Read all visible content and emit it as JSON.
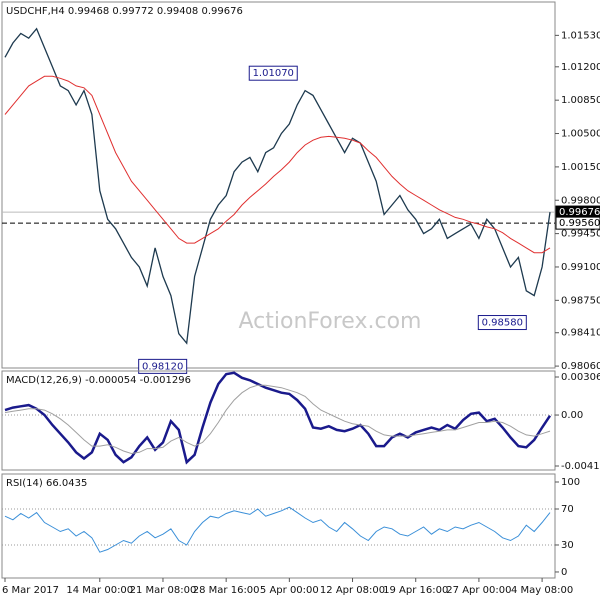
{
  "chart_data": [
    {
      "type": "line",
      "title": "USDCHF,H4  0.99468 0.99772 0.99408 0.99676",
      "watermark": "ActionForex.com",
      "ylim": [
        0.9804,
        1.0188
      ],
      "yticks": [
        {
          "value": 1.0153,
          "label": "1.01530"
        },
        {
          "value": 1.012,
          "label": "1.01200"
        },
        {
          "value": 1.0085,
          "label": "1.00850"
        },
        {
          "value": 1.005,
          "label": "1.00500"
        },
        {
          "value": 1.0015,
          "label": "1.00150"
        },
        {
          "value": 0.998,
          "label": "0.99800"
        },
        {
          "value": 0.9945,
          "label": "0.99450"
        },
        {
          "value": 0.991,
          "label": "0.99100"
        },
        {
          "value": 0.9875,
          "label": "0.98750"
        },
        {
          "value": 0.9841,
          "label": "0.98410"
        },
        {
          "value": 0.9806,
          "label": "0.98060"
        }
      ],
      "levels": [
        {
          "value": 0.99676,
          "label": "0.99676",
          "color": "#000000"
        },
        {
          "value": 0.9956,
          "label": "0.99560",
          "color": "#ffffff"
        }
      ],
      "annotations": [
        {
          "index": 37,
          "value": 1.0107,
          "label": "1.01070"
        },
        {
          "index": 23,
          "value": 0.9812,
          "label": "0.98120"
        },
        {
          "index": 66,
          "value": 0.9858,
          "label": "0.98580"
        }
      ],
      "series": [
        {
          "color": "#1e3a4f",
          "values": [
            1.013,
            1.0145,
            1.0155,
            1.015,
            1.016,
            1.014,
            1.012,
            1.01,
            1.0095,
            1.008,
            1.0095,
            1.007,
            0.999,
            0.996,
            0.995,
            0.9935,
            0.992,
            0.991,
            0.989,
            0.993,
            0.99,
            0.988,
            0.984,
            0.983,
            0.99,
            0.993,
            0.996,
            0.9975,
            0.9985,
            1.001,
            1.002,
            1.0025,
            1.001,
            1.003,
            1.0035,
            1.005,
            1.006,
            1.008,
            1.0095,
            1.009,
            1.0075,
            1.006,
            1.0045,
            1.003,
            1.0045,
            1.004,
            1.002,
            1.0,
            0.9965,
            0.9975,
            0.9985,
            0.997,
            0.996,
            0.9945,
            0.995,
            0.996,
            0.994,
            0.9945,
            0.995,
            0.9955,
            0.994,
            0.996,
            0.995,
            0.993,
            0.991,
            0.992,
            0.9885,
            0.988,
            0.991,
            0.99676
          ]
        },
        {
          "color": "#e03030",
          "values": [
            1.007,
            1.008,
            1.009,
            1.01,
            1.0105,
            1.011,
            1.011,
            1.0108,
            1.0105,
            1.01,
            1.0098,
            1.009,
            1.007,
            1.005,
            1.003,
            1.0015,
            1.0,
            0.999,
            0.998,
            0.997,
            0.996,
            0.995,
            0.994,
            0.9935,
            0.9935,
            0.994,
            0.9945,
            0.995,
            0.9958,
            0.9965,
            0.9975,
            0.9983,
            0.999,
            0.9997,
            1.0005,
            1.0012,
            1.002,
            1.003,
            1.0038,
            1.0043,
            1.0046,
            1.0047,
            1.0046,
            1.0045,
            1.0043,
            1.004,
            1.0032,
            1.0025,
            1.0015,
            1.0005,
            0.9997,
            0.999,
            0.9985,
            0.998,
            0.9975,
            0.997,
            0.9966,
            0.9962,
            0.996,
            0.9957,
            0.9955,
            0.9952,
            0.995,
            0.9946,
            0.994,
            0.9935,
            0.993,
            0.9925,
            0.9925,
            0.993
          ]
        }
      ]
    },
    {
      "type": "line",
      "title": "MACD(12,26,9) -0.000054 -0.001296",
      "ylim": [
        -0.004426,
        0.003546
      ],
      "yticks": [
        0.003063,
        {
          "value": 0,
          "label": "0.00"
        },
        -0.004104
      ],
      "series": [
        {
          "color": "#1a1a8c",
          "width": 2.5,
          "values": [
            0.0004,
            0.0006,
            0.0007,
            0.0008,
            0.0005,
            0.0,
            -0.0008,
            -0.0015,
            -0.0022,
            -0.003,
            -0.0035,
            -0.003,
            -0.0015,
            -0.002,
            -0.0032,
            -0.0038,
            -0.0034,
            -0.0025,
            -0.0018,
            -0.0028,
            -0.0022,
            -0.0005,
            -0.0012,
            -0.0038,
            -0.0032,
            -0.001,
            0.001,
            0.0025,
            0.0033,
            0.0034,
            0.003,
            0.0028,
            0.0025,
            0.0022,
            0.002,
            0.0018,
            0.0017,
            0.0012,
            0.0005,
            -0.001,
            -0.0011,
            -0.0009,
            -0.0012,
            -0.0013,
            -0.0011,
            -0.0008,
            -0.0015,
            -0.0025,
            -0.0025,
            -0.0018,
            -0.0015,
            -0.0018,
            -0.0014,
            -0.0012,
            -0.001,
            -0.0012,
            -0.0008,
            -0.0011,
            -0.0004,
            0.0001,
            0.0002,
            -0.0005,
            -0.0003,
            -0.001,
            -0.0018,
            -0.0025,
            -0.0026,
            -0.002,
            -0.001,
            -5.4e-05
          ]
        },
        {
          "color": "#a0a0a0",
          "width": 1,
          "values": [
            0.0002,
            0.0003,
            0.0004,
            0.0005,
            0.0005,
            0.0004,
            0.0001,
            -0.0003,
            -0.0008,
            -0.0014,
            -0.002,
            -0.0025,
            -0.0025,
            -0.0024,
            -0.0026,
            -0.0029,
            -0.0031,
            -0.003,
            -0.0027,
            -0.0027,
            -0.0026,
            -0.0021,
            -0.0018,
            -0.0022,
            -0.0025,
            -0.0022,
            -0.0015,
            -0.0006,
            0.0004,
            0.0012,
            0.0018,
            0.0022,
            0.0024,
            0.0024,
            0.0023,
            0.0022,
            0.002,
            0.0018,
            0.0015,
            0.0009,
            0.0004,
            0.0001,
            -0.0002,
            -0.0005,
            -0.0007,
            -0.0008,
            -0.0009,
            -0.0013,
            -0.0016,
            -0.0017,
            -0.0017,
            -0.0017,
            -0.0016,
            -0.0015,
            -0.0014,
            -0.0013,
            -0.0012,
            -0.0012,
            -0.001,
            -0.0008,
            -0.0006,
            -0.0006,
            -0.0005,
            -0.0006,
            -0.0009,
            -0.0013,
            -0.0016,
            -0.0017,
            -0.0015,
            -0.001296
          ]
        }
      ]
    },
    {
      "type": "line",
      "title": "RSI(14) 66.0435",
      "ylim": [
        -6.7,
        108.9
      ],
      "yticks": [
        100,
        70,
        30,
        0
      ],
      "categories": [
        "6 Mar 2017",
        null,
        null,
        null,
        null,
        null,
        null,
        null,
        null,
        null,
        null,
        null,
        "14 Mar 00:00",
        null,
        null,
        null,
        null,
        null,
        null,
        null,
        "21 Mar 08:00",
        null,
        null,
        null,
        null,
        null,
        null,
        null,
        "28 Mar 16:00",
        null,
        null,
        null,
        null,
        null,
        null,
        null,
        "5 Apr 00:00",
        null,
        null,
        null,
        null,
        null,
        null,
        null,
        "12 Apr 08:00",
        null,
        null,
        null,
        null,
        null,
        null,
        null,
        "19 Apr 16:00",
        null,
        null,
        null,
        null,
        null,
        null,
        null,
        "27 Apr 00:00",
        null,
        null,
        null,
        null,
        null,
        null,
        null,
        "4 May 08:00",
        null
      ],
      "series": [
        {
          "color": "#3a8fd8",
          "width": 1,
          "values": [
            62,
            58,
            65,
            60,
            66,
            55,
            50,
            45,
            48,
            40,
            45,
            38,
            22,
            25,
            30,
            35,
            32,
            40,
            45,
            38,
            42,
            48,
            35,
            30,
            45,
            55,
            62,
            60,
            65,
            68,
            66,
            64,
            70,
            62,
            65,
            68,
            72,
            66,
            60,
            55,
            58,
            50,
            45,
            55,
            48,
            40,
            35,
            45,
            50,
            48,
            42,
            40,
            45,
            50,
            42,
            48,
            45,
            50,
            48,
            52,
            55,
            50,
            45,
            38,
            35,
            40,
            52,
            45,
            55,
            66.0435
          ]
        }
      ]
    }
  ]
}
